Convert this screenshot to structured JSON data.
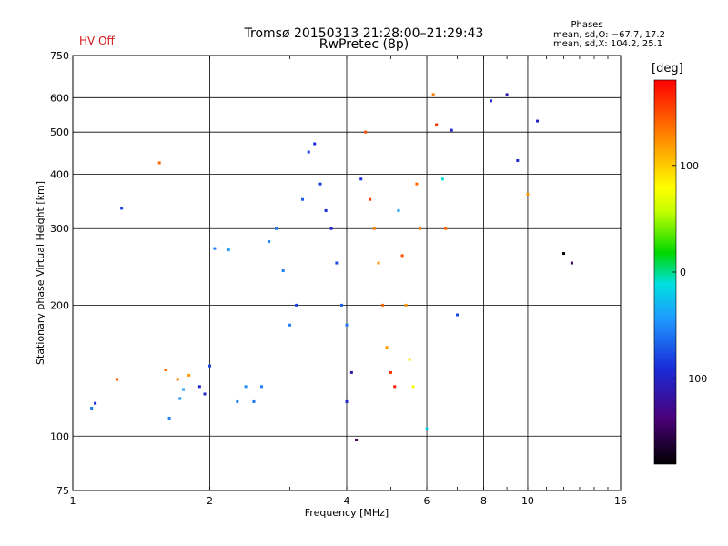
{
  "header": {
    "title_line1": "Tromsø 20150313 21:28:00–21:29:43",
    "title_line2": "RwPretec (8p)",
    "status": "HV Off",
    "status_color": "#d61a1a"
  },
  "phases_box": {
    "title": "Phases",
    "o_line": "mean, sd,O: −67.7, 17.2",
    "x_line": "mean, sd,X: 104.2, 25.1"
  },
  "colorbar": {
    "unit": "[deg]",
    "tick_labels": [
      "100",
      "0",
      "−100"
    ],
    "tick_values": [
      100,
      0,
      -100
    ],
    "range": [
      -180,
      180
    ]
  },
  "chart_data": {
    "type": "scatter",
    "title": "Tromsø 20150313 21:28:00–21:29:43",
    "subtitle": "RwPretec (8p)",
    "xlabel": "Frequency [MHz]",
    "ylabel": "Stationary phase Virtual Height [km]",
    "x_scale": "log",
    "y_scale": "log",
    "xlim": [
      1,
      16
    ],
    "ylim": [
      75,
      750
    ],
    "x_ticks": [
      1,
      2,
      4,
      6,
      8,
      10,
      16
    ],
    "x_tick_labels": [
      "1",
      "2",
      "4",
      "6",
      "8",
      "10",
      "16"
    ],
    "y_ticks": [
      75,
      100,
      200,
      300,
      400,
      500,
      600,
      750
    ],
    "y_tick_labels": [
      "75",
      "100",
      "200",
      "300",
      "400",
      "500",
      "600",
      "750"
    ],
    "grid": true,
    "color_variable": "phase [deg]",
    "series": [
      {
        "points": [
          [
            1.1,
            116,
            -60
          ],
          [
            1.12,
            119,
            -90
          ],
          [
            1.25,
            135,
            150
          ],
          [
            1.28,
            334,
            -80
          ],
          [
            1.55,
            425,
            140
          ],
          [
            1.6,
            142,
            140
          ],
          [
            1.63,
            110,
            -55
          ],
          [
            1.7,
            135,
            130
          ],
          [
            1.72,
            122,
            -50
          ],
          [
            1.75,
            128,
            -40
          ],
          [
            1.8,
            138,
            120
          ],
          [
            1.9,
            130,
            -95
          ],
          [
            1.95,
            125,
            -100
          ],
          [
            2.0,
            145,
            -80
          ],
          [
            2.05,
            270,
            -60
          ],
          [
            2.2,
            268,
            -45
          ],
          [
            2.3,
            120,
            -55
          ],
          [
            2.4,
            130,
            -50
          ],
          [
            2.5,
            120,
            -60
          ],
          [
            2.6,
            130,
            -55
          ],
          [
            2.7,
            280,
            -50
          ],
          [
            2.8,
            300,
            -60
          ],
          [
            2.9,
            240,
            -55
          ],
          [
            3.0,
            180,
            -55
          ],
          [
            3.1,
            200,
            -80
          ],
          [
            3.2,
            350,
            -70
          ],
          [
            3.3,
            450,
            -80
          ],
          [
            3.4,
            470,
            -90
          ],
          [
            3.5,
            380,
            -85
          ],
          [
            3.6,
            330,
            -90
          ],
          [
            3.7,
            300,
            -95
          ],
          [
            3.8,
            250,
            -80
          ],
          [
            3.9,
            200,
            -70
          ],
          [
            4.0,
            180,
            -60
          ],
          [
            4.0,
            120,
            -100
          ],
          [
            4.1,
            140,
            -120
          ],
          [
            4.2,
            98,
            -150
          ],
          [
            4.3,
            390,
            -90
          ],
          [
            4.4,
            500,
            150
          ],
          [
            4.5,
            350,
            160
          ],
          [
            4.6,
            300,
            130
          ],
          [
            4.7,
            250,
            120
          ],
          [
            4.8,
            200,
            140
          ],
          [
            4.9,
            160,
            120
          ],
          [
            5.0,
            140,
            160
          ],
          [
            5.1,
            130,
            170
          ],
          [
            5.2,
            330,
            -40
          ],
          [
            5.3,
            260,
            150
          ],
          [
            5.4,
            200,
            120
          ],
          [
            5.5,
            150,
            90
          ],
          [
            5.6,
            130,
            80
          ],
          [
            5.7,
            380,
            140
          ],
          [
            5.8,
            300,
            130
          ],
          [
            6.0,
            104,
            -20
          ],
          [
            6.2,
            610,
            130
          ],
          [
            6.3,
            520,
            160
          ],
          [
            6.5,
            390,
            -10
          ],
          [
            6.6,
            300,
            140
          ],
          [
            6.8,
            505,
            -95
          ],
          [
            7.0,
            190,
            -80
          ],
          [
            8.3,
            590,
            -95
          ],
          [
            9.0,
            610,
            -110
          ],
          [
            9.5,
            430,
            -95
          ],
          [
            10.0,
            360,
            120
          ],
          [
            10.5,
            530,
            -100
          ],
          [
            12.0,
            263,
            -180
          ],
          [
            12.5,
            250,
            -150
          ]
        ]
      }
    ]
  }
}
